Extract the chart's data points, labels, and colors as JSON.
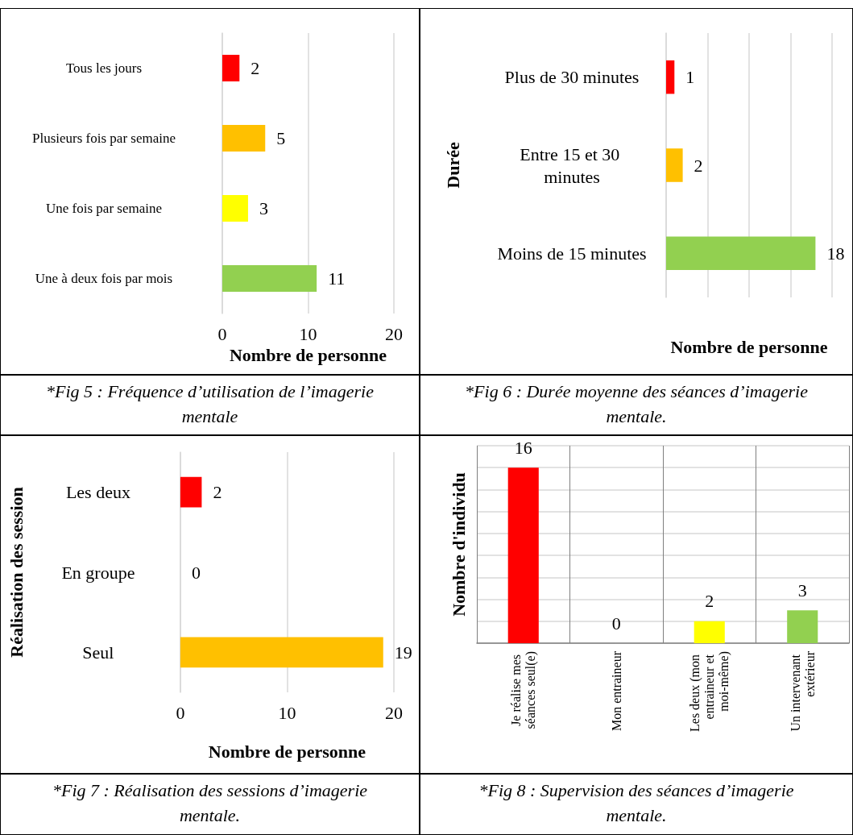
{
  "chart_data": [
    {
      "type": "bar",
      "orientation": "horizontal",
      "categories": [
        "Tous les jours",
        "Plusieurs fois par semaine",
        "Une fois par semaine",
        "Une à deux fois par mois"
      ],
      "values": [
        2,
        5,
        3,
        11
      ],
      "colors": [
        "#ff0000",
        "#ffc000",
        "#ffff00",
        "#92d050"
      ],
      "xlim": [
        0,
        20
      ],
      "xticks": [
        0,
        10,
        20
      ],
      "xlabel": "Nombre de personne",
      "grid": "x",
      "data_labels": true,
      "annotations": [
        "*Fig 5 : Fréquence d’utilisation de l’imagerie mentale"
      ]
    },
    {
      "type": "bar",
      "orientation": "horizontal",
      "categories": [
        "Plus de 30 minutes",
        "Entre 15 et 30 minutes",
        "Moins de 15 minutes"
      ],
      "values": [
        1,
        2,
        18
      ],
      "colors": [
        "#ff0000",
        "#ffc000",
        "#92d050"
      ],
      "tick_labels": "y",
      "xlabel": "Nombre de personne",
      "ylabel": "Durée",
      "grid": "x",
      "data_labels": true,
      "annotations": [
        "*Fig 6 : Durée moyenne des séances d’imagerie mentale."
      ]
    },
    {
      "type": "bar",
      "orientation": "horizontal",
      "categories": [
        "Les deux",
        "En groupe",
        "Seul"
      ],
      "values": [
        2,
        0,
        19
      ],
      "colors": [
        "#ff0000",
        "#ffc000",
        "#ffc000"
      ],
      "xlim": [
        0,
        20
      ],
      "xticks": [
        0,
        10,
        20
      ],
      "xlabel": "Nombre de personne",
      "ylabel": "Réalisation des session",
      "grid": "x",
      "data_labels": true,
      "annotations": [
        "*Fig 7 : Réalisation des sessions d’imagerie mentale."
      ]
    },
    {
      "type": "bar",
      "categories": [
        "Je réalise mes séances seul(e)",
        "Mon entraineur",
        "Les deux (mon entraineur et moi-même)",
        "Un intervenant extérieur"
      ],
      "values": [
        16,
        0,
        2,
        3
      ],
      "colors": [
        "#ff0000",
        "#ffc000",
        "#ffff00",
        "#92d050"
      ],
      "ylim": [
        0,
        18
      ],
      "yticks": [
        {
          "value": 0,
          "label": null
        },
        {
          "value": 2,
          "label": null
        },
        {
          "value": 4,
          "label": null
        },
        {
          "value": 6,
          "label": null
        },
        {
          "value": 8,
          "label": null
        },
        {
          "value": 10,
          "label": null
        },
        {
          "value": 12,
          "label": null
        },
        {
          "value": 14,
          "label": null
        },
        {
          "value": 16,
          "label": null
        },
        {
          "value": 18,
          "label": null
        }
      ],
      "tick_labels": "x",
      "ylabel": "Nombre d'individu",
      "grid": true,
      "data_labels": true,
      "annotations": [
        "*Fig 8 : Supervision des séances d’imagerie mentale."
      ]
    }
  ]
}
